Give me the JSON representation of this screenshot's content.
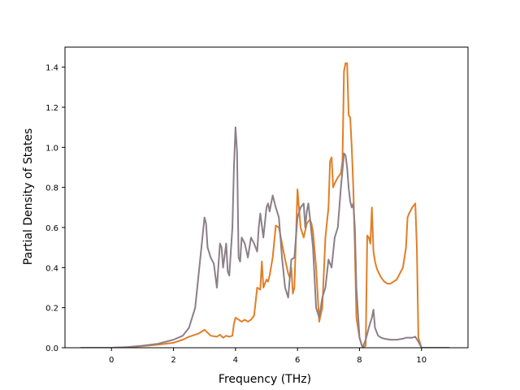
{
  "chart_data": {
    "type": "line",
    "title": "",
    "xlabel": "Frequency (THz)",
    "ylabel": "Partial Density of States",
    "xlim": [
      -1.5,
      11.5
    ],
    "ylim": [
      0,
      1.5
    ],
    "xticks": [
      0,
      2,
      4,
      6,
      8,
      10
    ],
    "yticks": [
      0.0,
      0.2,
      0.4,
      0.6,
      0.8,
      1.0,
      1.2,
      1.4
    ],
    "xtick_labels": [
      "0",
      "2",
      "4",
      "6",
      "8",
      "10"
    ],
    "ytick_labels": [
      "0.0",
      "0.2",
      "0.4",
      "0.6",
      "0.8",
      "1.0",
      "1.2",
      "1.4"
    ],
    "grid": false,
    "legend": false,
    "series": [
      {
        "color": "#e07f27",
        "x": [
          -1.0,
          0.0,
          0.5,
          1.0,
          1.5,
          2.0,
          2.3,
          2.5,
          2.8,
          3.0,
          3.2,
          3.4,
          3.5,
          3.6,
          3.7,
          3.8,
          3.9,
          3.95,
          4.0,
          4.1,
          4.2,
          4.3,
          4.4,
          4.5,
          4.6,
          4.7,
          4.8,
          4.85,
          4.9,
          5.0,
          5.05,
          5.1,
          5.2,
          5.3,
          5.4,
          5.5,
          5.6,
          5.7,
          5.75,
          5.8,
          5.85,
          5.9,
          6.0,
          6.1,
          6.2,
          6.3,
          6.4,
          6.45,
          6.5,
          6.6,
          6.7,
          6.8,
          6.9,
          7.0,
          7.05,
          7.1,
          7.15,
          7.2,
          7.3,
          7.4,
          7.45,
          7.5,
          7.55,
          7.6,
          7.65,
          7.7,
          7.75,
          7.8,
          7.85,
          7.9,
          8.0,
          8.1,
          8.2,
          8.25,
          8.3,
          8.35,
          8.4,
          8.45,
          8.5,
          8.55,
          8.6,
          8.7,
          8.8,
          8.9,
          9.0,
          9.2,
          9.4,
          9.5,
          9.55,
          9.6,
          9.7,
          9.8,
          9.85,
          9.9,
          10.0,
          10.9
        ],
        "y": [
          0.0,
          0.0,
          0.003,
          0.008,
          0.015,
          0.025,
          0.04,
          0.055,
          0.07,
          0.09,
          0.06,
          0.055,
          0.065,
          0.05,
          0.06,
          0.055,
          0.06,
          0.12,
          0.15,
          0.14,
          0.13,
          0.14,
          0.13,
          0.14,
          0.16,
          0.3,
          0.29,
          0.43,
          0.3,
          0.34,
          0.33,
          0.36,
          0.45,
          0.61,
          0.6,
          0.52,
          0.44,
          0.37,
          0.35,
          0.4,
          0.27,
          0.3,
          0.79,
          0.6,
          0.55,
          0.62,
          0.64,
          0.62,
          0.58,
          0.4,
          0.13,
          0.2,
          0.55,
          0.7,
          0.93,
          0.95,
          0.8,
          0.82,
          0.85,
          0.87,
          0.93,
          1.38,
          1.42,
          1.42,
          1.16,
          1.15,
          1.0,
          0.8,
          0.5,
          0.15,
          0.05,
          0.0,
          0.01,
          0.56,
          0.55,
          0.52,
          0.7,
          0.48,
          0.43,
          0.4,
          0.38,
          0.35,
          0.33,
          0.32,
          0.32,
          0.34,
          0.4,
          0.5,
          0.65,
          0.67,
          0.7,
          0.72,
          0.5,
          0.05,
          0.0,
          0.0
        ]
      },
      {
        "color": "#8c7f88",
        "x": [
          -1.0,
          0.0,
          0.5,
          1.0,
          1.5,
          2.0,
          2.3,
          2.5,
          2.7,
          2.8,
          2.9,
          3.0,
          3.05,
          3.1,
          3.2,
          3.3,
          3.4,
          3.5,
          3.55,
          3.6,
          3.7,
          3.75,
          3.8,
          3.9,
          3.95,
          4.0,
          4.05,
          4.1,
          4.15,
          4.2,
          4.3,
          4.4,
          4.5,
          4.6,
          4.7,
          4.75,
          4.8,
          4.9,
          5.0,
          5.05,
          5.1,
          5.2,
          5.3,
          5.4,
          5.5,
          5.6,
          5.7,
          5.8,
          5.9,
          6.0,
          6.1,
          6.15,
          6.2,
          6.25,
          6.3,
          6.35,
          6.4,
          6.5,
          6.6,
          6.7,
          6.8,
          6.9,
          7.0,
          7.05,
          7.1,
          7.2,
          7.3,
          7.4,
          7.5,
          7.55,
          7.6,
          7.65,
          7.7,
          7.75,
          7.8,
          7.85,
          7.9,
          8.0,
          8.1,
          8.2,
          8.3,
          8.4,
          8.45,
          8.5,
          8.55,
          8.6,
          8.7,
          8.8,
          9.0,
          9.2,
          9.4,
          9.5,
          9.7,
          9.8,
          9.9,
          10.0,
          10.9
        ],
        "y": [
          0.0,
          0.0,
          0.003,
          0.01,
          0.02,
          0.04,
          0.06,
          0.1,
          0.2,
          0.35,
          0.5,
          0.65,
          0.62,
          0.5,
          0.45,
          0.42,
          0.3,
          0.52,
          0.5,
          0.4,
          0.52,
          0.38,
          0.36,
          0.6,
          0.9,
          1.1,
          0.98,
          0.45,
          0.43,
          0.55,
          0.52,
          0.45,
          0.55,
          0.52,
          0.48,
          0.6,
          0.67,
          0.55,
          0.7,
          0.72,
          0.68,
          0.76,
          0.7,
          0.65,
          0.45,
          0.3,
          0.25,
          0.44,
          0.45,
          0.65,
          0.7,
          0.71,
          0.72,
          0.6,
          0.68,
          0.72,
          0.65,
          0.5,
          0.2,
          0.15,
          0.25,
          0.3,
          0.44,
          0.42,
          0.4,
          0.55,
          0.6,
          0.8,
          0.97,
          0.96,
          0.9,
          0.8,
          0.73,
          0.7,
          0.72,
          0.6,
          0.3,
          0.05,
          0.0,
          0.04,
          0.1,
          0.15,
          0.19,
          0.1,
          0.08,
          0.06,
          0.05,
          0.045,
          0.04,
          0.04,
          0.045,
          0.05,
          0.05,
          0.055,
          0.03,
          0.0,
          0.0
        ]
      }
    ]
  }
}
